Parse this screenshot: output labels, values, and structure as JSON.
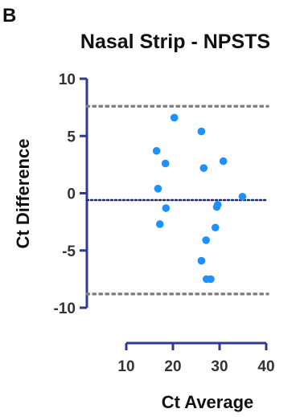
{
  "panel_label": "B",
  "colors": {
    "axis": "#2f3b8c",
    "points": "#1e90ff",
    "bias_line": "#1f2a6b",
    "limit_lines": "#808080",
    "text": "#111111",
    "tick_text": "#333333"
  },
  "chart_data": {
    "type": "scatter",
    "title": "Nasal Strip - NPSTS",
    "xlabel": "Ct Average",
    "ylabel": "Ct Difference",
    "xlim": [
      10,
      40
    ],
    "ylim": [
      -10,
      10
    ],
    "xticks": [
      10,
      20,
      30,
      40
    ],
    "yticks": [
      10,
      5,
      0,
      -5,
      -10
    ],
    "grid": false,
    "points": [
      {
        "x": 20.3,
        "y": 6.6
      },
      {
        "x": 26.1,
        "y": 5.4
      },
      {
        "x": 16.5,
        "y": 3.7
      },
      {
        "x": 18.4,
        "y": 2.6
      },
      {
        "x": 30.8,
        "y": 2.8
      },
      {
        "x": 26.6,
        "y": 2.2
      },
      {
        "x": 16.8,
        "y": 0.4
      },
      {
        "x": 34.9,
        "y": -0.3
      },
      {
        "x": 29.6,
        "y": -1.0
      },
      {
        "x": 29.4,
        "y": -1.2
      },
      {
        "x": 18.5,
        "y": -1.3
      },
      {
        "x": 17.2,
        "y": -2.7
      },
      {
        "x": 29.1,
        "y": -3.0
      },
      {
        "x": 27.1,
        "y": -4.1
      },
      {
        "x": 26.1,
        "y": -5.9
      },
      {
        "x": 27.2,
        "y": -7.5
      },
      {
        "x": 28.1,
        "y": -7.5
      }
    ],
    "reference_lines": [
      {
        "name": "upper-limit",
        "y": 7.6,
        "style": "dotted"
      },
      {
        "name": "mean-bias",
        "y": -0.6,
        "style": "dotted"
      },
      {
        "name": "lower-limit",
        "y": -8.8,
        "style": "dotted"
      }
    ]
  }
}
